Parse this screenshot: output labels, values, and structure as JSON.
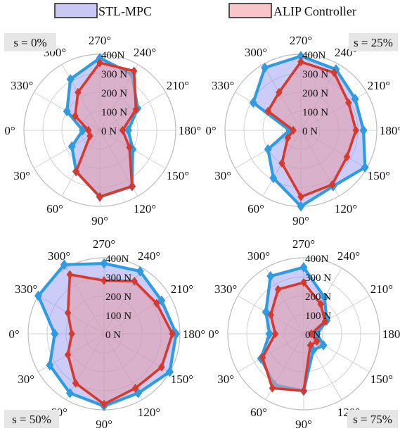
{
  "legend": [
    {
      "label": "STL-MPC",
      "fill": "#c9c8f5",
      "stroke": "#2a2a2a"
    },
    {
      "label": "ALIP Controller",
      "fill": "#f8c6c9",
      "stroke": "#2a2a2a"
    }
  ],
  "colors": {
    "stl_line": "#2f9be0",
    "stl_fill": "#8f8ff0",
    "alip_line": "#d63a2f",
    "alip_fill": "#e39aa6",
    "grid": "#d0d0d0",
    "caption_bg": "#e6e6e6"
  },
  "chart_data": [
    {
      "type": "polar-radar",
      "caption": "s = 0%",
      "caption_pos": "top-left",
      "angle_labels": [
        "0°",
        "30°",
        "60°",
        "90°",
        "120°",
        "150°",
        "180°",
        "210°",
        "240°",
        "270°",
        "300°",
        "330°"
      ],
      "radial_labels": [
        "0 N",
        "100 N",
        "200 N",
        "300 N",
        "400N"
      ],
      "rmax": 400,
      "theta_deg": [
        0,
        30,
        60,
        90,
        120,
        150,
        180,
        210,
        240,
        270,
        300,
        330
      ],
      "series": [
        {
          "name": "STL-MPC",
          "values": [
            90,
            170,
            250,
            350,
            340,
            200,
            150,
            230,
            340,
            380,
            310,
            200
          ]
        },
        {
          "name": "ALIP Controller",
          "values": [
            60,
            60,
            250,
            350,
            340,
            180,
            120,
            220,
            360,
            355,
            230,
            150
          ]
        }
      ]
    },
    {
      "type": "polar-radar",
      "caption": "s = 25%",
      "caption_pos": "top-right",
      "angle_labels": [
        "0°",
        "30°",
        "60°",
        "90°",
        "120°",
        "150°",
        "180°",
        "210°",
        "240°",
        "270°",
        "300°",
        "330°"
      ],
      "radial_labels": [
        "0 N",
        "100 N",
        "200 N",
        "300 N",
        "400N"
      ],
      "rmax": 400,
      "theta_deg": [
        0,
        30,
        60,
        90,
        120,
        150,
        180,
        210,
        240,
        270,
        300,
        330
      ],
      "series": [
        {
          "name": "STL-MPC",
          "values": [
            60,
            200,
            290,
            400,
            340,
            390,
            330,
            330,
            370,
            390,
            380,
            290
          ]
        },
        {
          "name": "ALIP Controller",
          "values": [
            40,
            80,
            200,
            350,
            330,
            280,
            290,
            290,
            350,
            360,
            230,
            200
          ]
        }
      ]
    },
    {
      "type": "polar-radar",
      "caption": "s = 50%",
      "caption_pos": "bottom-left",
      "angle_labels": [
        "0°",
        "30°",
        "60°",
        "90°",
        "120°",
        "150°",
        "180°",
        "210°",
        "240°",
        "270°",
        "300°",
        "330°"
      ],
      "radial_labels": [
        "0 N",
        "100 N",
        "200 N",
        "300 N",
        "400N"
      ],
      "rmax": 400,
      "theta_deg": [
        0,
        30,
        60,
        90,
        120,
        150,
        180,
        210,
        240,
        270,
        300,
        330
      ],
      "series": [
        {
          "name": "STL-MPC",
          "values": [
            260,
            330,
            360,
            380,
            360,
            400,
            380,
            350,
            380,
            370,
            420,
            400
          ]
        },
        {
          "name": "ALIP Controller",
          "values": [
            170,
            220,
            300,
            370,
            330,
            350,
            360,
            320,
            320,
            280,
            360,
            220
          ]
        }
      ]
    },
    {
      "type": "polar-radar",
      "caption": "s = 75%",
      "caption_pos": "bottom-right",
      "angle_labels": [
        "0°",
        "30°",
        "60°",
        "90°",
        "120°",
        "150°",
        "180°",
        "210°",
        "240°",
        "270°",
        "300°",
        "330°"
      ],
      "radial_labels": [
        "0 N",
        "100 N",
        "200 N",
        "300 N",
        "400N"
      ],
      "rmax": 400,
      "theta_deg": [
        0,
        30,
        60,
        90,
        120,
        150,
        180,
        210,
        240,
        270,
        300,
        330
      ],
      "series": [
        {
          "name": "STL-MPC",
          "values": [
            180,
            260,
            310,
            300,
            100,
            120,
            70,
            140,
            220,
            350,
            350,
            230
          ]
        },
        {
          "name": "ALIP Controller",
          "values": [
            150,
            250,
            330,
            300,
            70,
            80,
            40,
            130,
            180,
            270,
            270,
            200
          ]
        }
      ]
    }
  ]
}
